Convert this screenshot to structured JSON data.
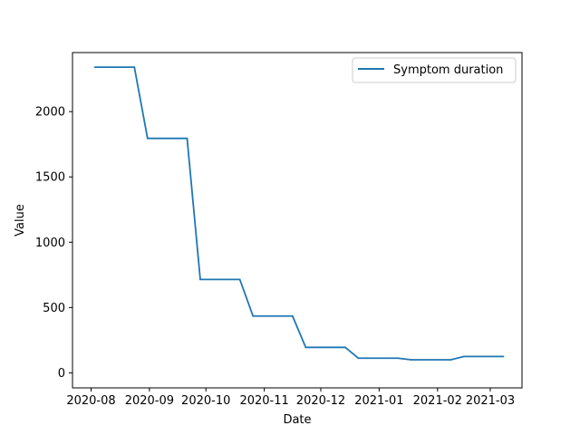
{
  "chart_data": {
    "type": "line",
    "title": "",
    "xlabel": "Date",
    "ylabel": "Value",
    "x_tick_labels": [
      "2020-08",
      "2020-09",
      "2020-10",
      "2020-11",
      "2020-12",
      "2021-01",
      "2021-02",
      "2021-03"
    ],
    "y_tick_labels": [
      "0",
      "500",
      "1000",
      "1500",
      "2000"
    ],
    "ylim": [
      0,
      2400
    ],
    "grid": false,
    "legend": {
      "placement": "top-right"
    },
    "series": [
      {
        "name": "Symptom duration",
        "color": "#1f77b4",
        "x": [
          "2020-08-03",
          "2020-08-24",
          "2020-08-31",
          "2020-09-21",
          "2020-09-28",
          "2020-10-19",
          "2020-10-26",
          "2020-11-16",
          "2020-11-23",
          "2020-12-14",
          "2020-12-21",
          "2021-01-11",
          "2021-01-18",
          "2021-02-08",
          "2021-02-15",
          "2021-03-08"
        ],
        "values": [
          2340,
          2340,
          1795,
          1795,
          715,
          715,
          435,
          435,
          195,
          195,
          112,
          112,
          100,
          100,
          125,
          125
        ]
      }
    ]
  }
}
